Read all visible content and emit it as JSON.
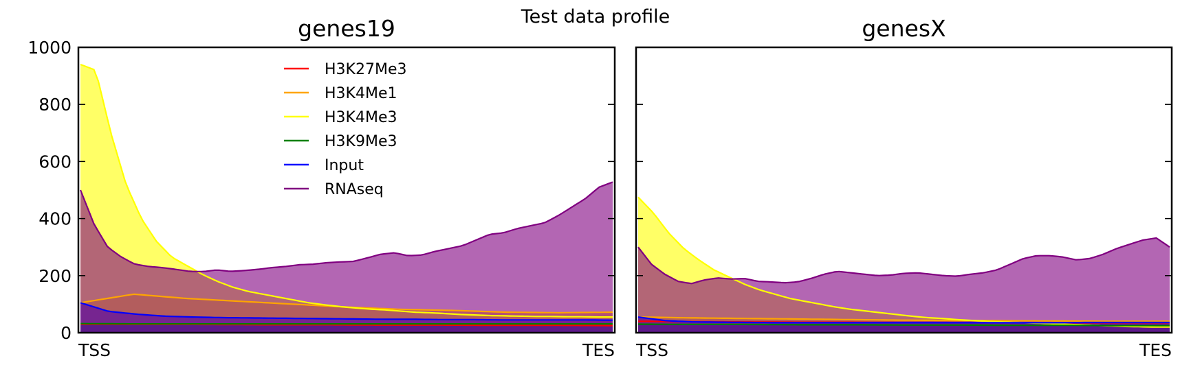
{
  "figure": {
    "title": "Test data profile"
  },
  "legend": {
    "placement": "upper-left-inside-first-panel"
  },
  "chart_data": [
    {
      "type": "area",
      "title": "genes19",
      "x_start_label": "TSS",
      "x_end_label": "TES",
      "ylim": [
        0,
        1000
      ],
      "yticks": [
        0,
        200,
        400,
        600,
        800,
        1000
      ],
      "grid": false,
      "series": [
        {
          "name": "H3K27Me3",
          "color": "#ff0000",
          "values": [
            30,
            29,
            29,
            28,
            28,
            27,
            27,
            26,
            26,
            25
          ]
        },
        {
          "name": "H3K4Me1",
          "color": "#ffa500",
          "values": [
            105,
            135,
            120,
            110,
            100,
            90,
            82,
            78,
            72,
            70,
            72
          ]
        },
        {
          "name": "H3K4Me3",
          "color": "#ffff00",
          "values": [
            940,
            920,
            700,
            520,
            400,
            320,
            265,
            235,
            205,
            180,
            160,
            145,
            135,
            125,
            115,
            105,
            98,
            92,
            87,
            83,
            80,
            76,
            72,
            70,
            67,
            64,
            62,
            60,
            59,
            58,
            57,
            57,
            56,
            56,
            55,
            55
          ]
        },
        {
          "name": "H3K9Me3",
          "color": "#008000",
          "values": [
            32,
            31,
            31,
            31,
            31,
            31,
            31,
            31,
            31,
            31,
            31
          ]
        },
        {
          "name": "Input",
          "color": "#0000ff",
          "values": [
            105,
            75,
            65,
            58,
            55,
            53,
            52,
            51,
            50,
            49,
            48,
            47,
            47,
            46,
            46,
            45,
            45,
            45,
            45,
            44
          ]
        },
        {
          "name": "RNAseq",
          "color": "#800080",
          "values": [
            500,
            380,
            300,
            265,
            240,
            232,
            228,
            222,
            215,
            214,
            220,
            215,
            218,
            222,
            228,
            232,
            238,
            240,
            245,
            248,
            250,
            262,
            275,
            280,
            270,
            272,
            285,
            295,
            305,
            325,
            345,
            350,
            365,
            375,
            385,
            410,
            440,
            470,
            510,
            528
          ]
        }
      ]
    },
    {
      "type": "area",
      "title": "genesX",
      "x_start_label": "TSS",
      "x_end_label": "TES",
      "ylim": [
        0,
        1000
      ],
      "yticks": [
        0,
        200,
        400,
        600,
        800,
        1000
      ],
      "grid": false,
      "series": [
        {
          "name": "H3K27Me3",
          "color": "#ff0000",
          "values": [
            40,
            39,
            38,
            37,
            37,
            36,
            36,
            35,
            35,
            35,
            35
          ]
        },
        {
          "name": "H3K4Me1",
          "color": "#ffa500",
          "values": [
            55,
            52,
            50,
            48,
            46,
            44,
            43,
            42,
            41,
            40,
            40
          ]
        },
        {
          "name": "H3K4Me3",
          "color": "#ffff00",
          "values": [
            475,
            420,
            350,
            295,
            255,
            220,
            195,
            170,
            150,
            135,
            120,
            110,
            100,
            90,
            82,
            76,
            70,
            64,
            58,
            53,
            50,
            46,
            43,
            40,
            38,
            36,
            34,
            32,
            30,
            28,
            26,
            24,
            22,
            21,
            20,
            20
          ]
        },
        {
          "name": "H3K9Me3",
          "color": "#008000",
          "values": [
            30,
            29,
            29,
            28,
            28,
            27,
            27,
            26,
            26,
            25,
            25
          ]
        },
        {
          "name": "Input",
          "color": "#0000ff",
          "values": [
            55,
            42,
            38,
            37,
            36,
            35,
            35,
            35,
            35,
            35,
            35,
            35,
            35,
            35,
            35,
            35,
            36,
            36,
            36,
            36
          ]
        },
        {
          "name": "RNAseq",
          "color": "#800080",
          "values": [
            300,
            240,
            205,
            180,
            172,
            185,
            192,
            188,
            190,
            180,
            178,
            175,
            178,
            190,
            205,
            215,
            210,
            205,
            200,
            202,
            208,
            210,
            205,
            200,
            198,
            205,
            210,
            220,
            240,
            260,
            270,
            270,
            265,
            255,
            260,
            275,
            295,
            310,
            325,
            332,
            300
          ]
        }
      ]
    }
  ]
}
